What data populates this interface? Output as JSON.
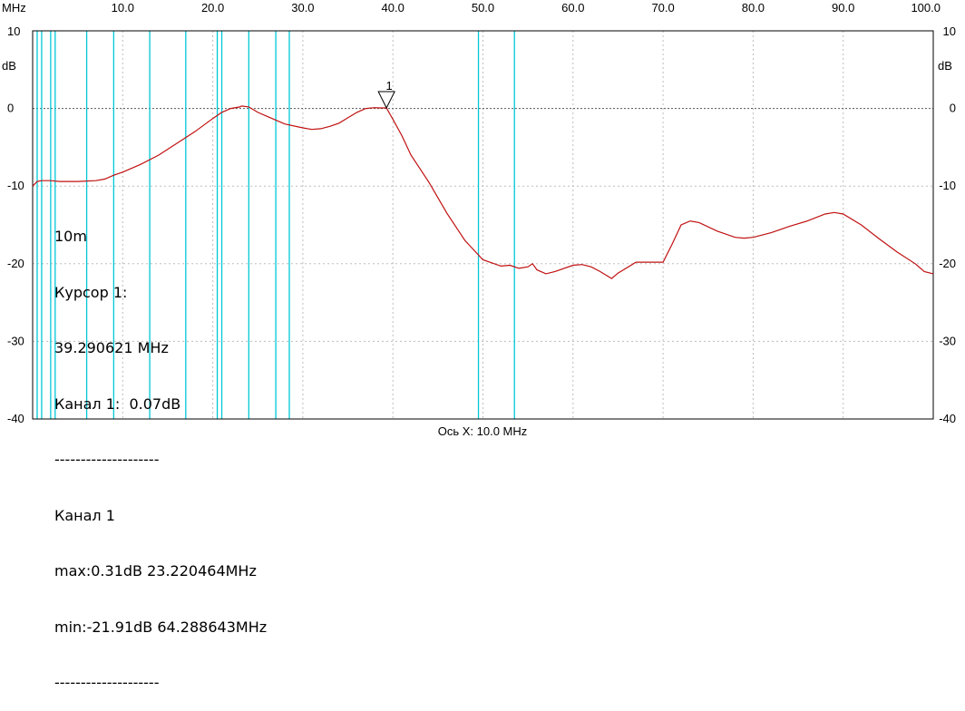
{
  "chart_data": {
    "type": "line",
    "x_unit_label": "MHz",
    "y_unit_label": "dB",
    "xlim": [
      0,
      100
    ],
    "ylim": [
      -40,
      10
    ],
    "x_ticks": [
      "10.0",
      "20.0",
      "30.0",
      "40.0",
      "50.0",
      "60.0",
      "70.0",
      "80.0",
      "90.0",
      "100.0"
    ],
    "y_ticks": [
      "10",
      "0",
      "-10",
      "-20",
      "-30",
      "-40"
    ],
    "x_axis_caption": "Ось X: 10.0 MHz",
    "grid": true,
    "series_color": "#c01010",
    "marker_color": "#00c8d8",
    "markers_mhz": [
      0.5,
      1.0,
      2.0,
      2.5,
      6.0,
      9.0,
      13.0,
      17.0,
      20.5,
      21.0,
      24.0,
      27.0,
      28.5,
      49.5,
      53.5
    ],
    "series": [
      {
        "x": [
          0.0,
          0.5,
          1.0,
          2.0,
          3.0,
          5.0,
          7.0,
          8.0,
          9.0,
          10.0,
          12.0,
          14.0,
          16.0,
          18.0,
          20.0,
          21.0,
          22.0,
          23.0,
          23.2,
          24.0,
          25.0,
          26.0,
          27.0,
          28.0,
          30.0,
          31.0,
          32.0,
          33.0,
          34.0,
          35.0,
          36.0,
          37.0,
          38.0,
          38.5,
          39.29,
          40.0,
          41.0,
          42.0,
          44.0,
          46.0,
          48.0,
          50.0,
          52.0,
          53.0,
          54.0,
          55.0,
          55.5,
          56.0,
          57.0,
          58.0,
          60.0,
          61.0,
          62.0,
          63.0,
          64.29,
          65.0,
          67.0,
          68.0,
          70.0,
          71.0,
          72.0,
          73.0,
          74.0,
          76.0,
          78.0,
          79.0,
          80.0,
          82.0,
          84.0,
          86.0,
          88.0,
          89.0,
          90.0,
          92.0,
          94.0,
          96.0,
          98.0,
          99.0,
          100.0
        ],
        "y": [
          -10.0,
          -9.4,
          -9.3,
          -9.3,
          -9.4,
          -9.4,
          -9.3,
          -9.1,
          -8.6,
          -8.2,
          -7.2,
          -6.0,
          -4.5,
          -3.0,
          -1.3,
          -0.5,
          0.0,
          0.2,
          0.31,
          0.2,
          -0.5,
          -1.0,
          -1.5,
          -2.0,
          -2.5,
          -2.7,
          -2.6,
          -2.3,
          -1.9,
          -1.2,
          -0.5,
          0.0,
          0.1,
          0.07,
          0.07,
          -1.4,
          -3.5,
          -6.0,
          -9.5,
          -13.5,
          -17.0,
          -19.5,
          -20.3,
          -20.2,
          -20.6,
          -20.4,
          -20.0,
          -20.8,
          -21.3,
          -21.0,
          -20.2,
          -20.1,
          -20.4,
          -21.0,
          -21.91,
          -21.2,
          -19.8,
          -19.8,
          -19.8,
          -17.5,
          -15.0,
          -14.5,
          -14.7,
          -15.8,
          -16.6,
          -16.7,
          -16.6,
          -16.0,
          -15.2,
          -14.5,
          -13.6,
          -13.4,
          -13.6,
          -15.0,
          -16.8,
          -18.5,
          -20.0,
          -21.0,
          -21.3
        ]
      }
    ],
    "cursor": {
      "label": "1",
      "x": 39.29
    }
  },
  "info": {
    "l1": "10m",
    "l2": "Курсор 1:",
    "l3": "39.290621 MHz",
    "l4": "Канал 1:  0.07dB",
    "l5": "--------------------",
    "l6": "Канал 1",
    "l7": "max:0.31dB 23.220464MHz",
    "l8": "min:-21.91dB 64.288643MHz",
    "l9": "--------------------"
  }
}
